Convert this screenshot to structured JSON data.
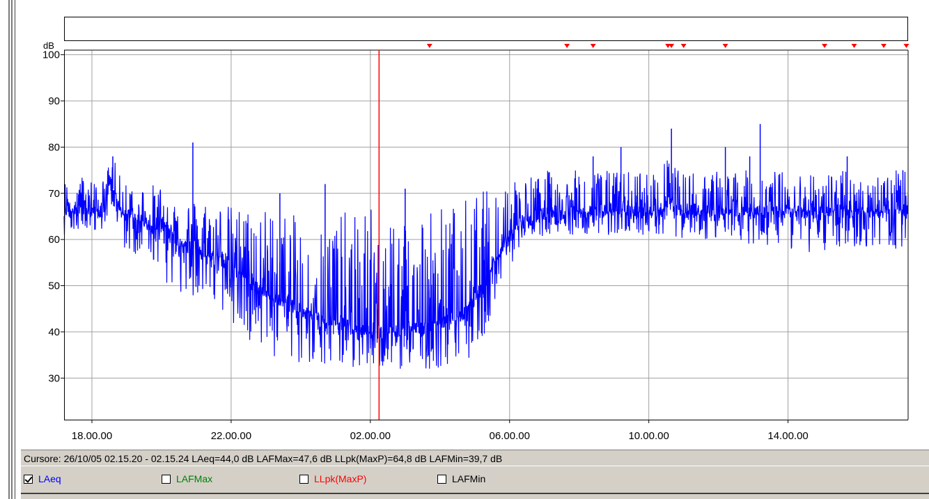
{
  "status": {
    "cursor_text": "Cursore: 26/10/05 02.15.20 - 02.15.24  LAeq=44,0 dB  LAFMax=47,6 dB  LLpk(MaxP)=64,8 dB  LAFMin=39,7 dB"
  },
  "legend": [
    {
      "label": "LAeq",
      "checked": true,
      "color": "#0000ff"
    },
    {
      "label": "LAFMax",
      "checked": false,
      "color": "#008000"
    },
    {
      "label": "LLpk(MaxP)",
      "checked": false,
      "color": "#ff0000"
    },
    {
      "label": "LAFMin",
      "checked": false,
      "color": "#000000"
    }
  ],
  "chart_data": {
    "type": "line",
    "ylabel": "dB",
    "ylim": [
      21,
      101
    ],
    "y_ticks": [
      "30",
      "40",
      "50",
      "60",
      "70",
      "80",
      "90",
      "100"
    ],
    "x_ticks": [
      "18.00.00",
      "22.00.00",
      "02.00.00",
      "06.00.00",
      "10.00.00",
      "14.00.00"
    ],
    "x_start_hours": 17.2,
    "x_end_hours": 41.45,
    "cursor_hours": 26.25,
    "event_marker_hours": [
      27.7,
      31.65,
      32.4,
      35.0,
      36.2,
      39.05,
      39.9,
      40.75,
      41.4
    ],
    "event_marker_double_hours": [
      34.6
    ],
    "grid": true,
    "series": [
      {
        "name": "LAeq",
        "color": "#0000ff",
        "x_hours": [
          17.2,
          17.5,
          17.8,
          18.1,
          18.4,
          18.5,
          18.65,
          18.8,
          19.1,
          19.4,
          19.7,
          20.0,
          20.3,
          20.6,
          20.9,
          21.2,
          21.5,
          21.8,
          22.1,
          22.4,
          22.7,
          23.0,
          23.3,
          23.6,
          23.9,
          24.2,
          24.5,
          24.8,
          25.1,
          25.4,
          25.7,
          26.0,
          26.3,
          26.6,
          26.9,
          27.2,
          27.5,
          27.8,
          28.1,
          28.4,
          28.7,
          29.0,
          29.3,
          29.6,
          29.9,
          30.2,
          30.5,
          30.8,
          31.1,
          31.4,
          31.7,
          32.0,
          32.3,
          32.6,
          32.9,
          33.2,
          33.5,
          33.8,
          34.1,
          34.4,
          34.65,
          34.8,
          35.1,
          35.4,
          35.7,
          36.0,
          36.3,
          36.6,
          36.9,
          37.2,
          37.5,
          37.8,
          38.1,
          38.4,
          38.7,
          39.0,
          39.3,
          39.6,
          39.9,
          40.2,
          40.5,
          40.8,
          41.1,
          41.45
        ],
        "mean": [
          66,
          67,
          67,
          66,
          66,
          73,
          70,
          66,
          65,
          64,
          63,
          63,
          61,
          59,
          58,
          57,
          56,
          56,
          54,
          52,
          50,
          48,
          47,
          46,
          45,
          44,
          43,
          42,
          42,
          41,
          40,
          40,
          40,
          40,
          40,
          41,
          41,
          41,
          42,
          43,
          44,
          47,
          51,
          56,
          60,
          63,
          64,
          65,
          66,
          66,
          66,
          66,
          66,
          66,
          66,
          66,
          66,
          66,
          66,
          66,
          68,
          66,
          66,
          66,
          66,
          66,
          66,
          66,
          66,
          66,
          66,
          66,
          66,
          66,
          66,
          66,
          66,
          66,
          66,
          66,
          66,
          66,
          66,
          66
        ],
        "min": [
          61,
          62,
          62,
          62,
          62,
          70,
          63,
          59,
          57,
          56,
          55,
          52,
          49,
          48,
          47,
          45,
          44,
          43,
          40,
          38,
          37,
          35,
          34,
          33,
          33,
          32,
          32,
          32,
          32,
          32,
          32,
          32,
          32,
          32,
          32,
          32,
          32,
          32,
          32,
          33,
          33,
          35,
          40,
          46,
          52,
          57,
          59,
          60,
          61,
          61,
          61,
          61,
          61,
          61,
          60,
          61,
          61,
          61,
          61,
          61,
          65,
          60,
          60,
          60,
          60,
          60,
          59,
          59,
          59,
          58,
          58,
          58,
          58,
          57,
          57,
          57,
          57,
          58,
          58,
          58,
          58,
          58,
          58,
          58
        ],
        "max": [
          73,
          74,
          74,
          73,
          73,
          78,
          77,
          74,
          73,
          72,
          72,
          72,
          70,
          69,
          69,
          69,
          68,
          68,
          67,
          67,
          67,
          67,
          66,
          66,
          65,
          65,
          65,
          66,
          66,
          66,
          67,
          67,
          67,
          67,
          67,
          67,
          68,
          68,
          68,
          68,
          69,
          70,
          71,
          72,
          73,
          74,
          74,
          74,
          75,
          75,
          75,
          75,
          75,
          75,
          75,
          75,
          75,
          75,
          75,
          75,
          84,
          75,
          75,
          75,
          75,
          75,
          75,
          75,
          75,
          75,
          75,
          75,
          75,
          75,
          75,
          75,
          75,
          75,
          75,
          75,
          75,
          75,
          75,
          75
        ],
        "spikes": [
          [
            20.9,
            81
          ],
          [
            33.2,
            80
          ],
          [
            32.4,
            78
          ],
          [
            34.65,
            84
          ],
          [
            36.2,
            80
          ],
          [
            37.2,
            85
          ],
          [
            39.7,
            78
          ],
          [
            18.6,
            78
          ],
          [
            24.7,
            72
          ],
          [
            27.0,
            71
          ],
          [
            23.4,
            70
          ],
          [
            36.9,
            78
          ],
          [
            41.3,
            75
          ]
        ]
      }
    ]
  }
}
